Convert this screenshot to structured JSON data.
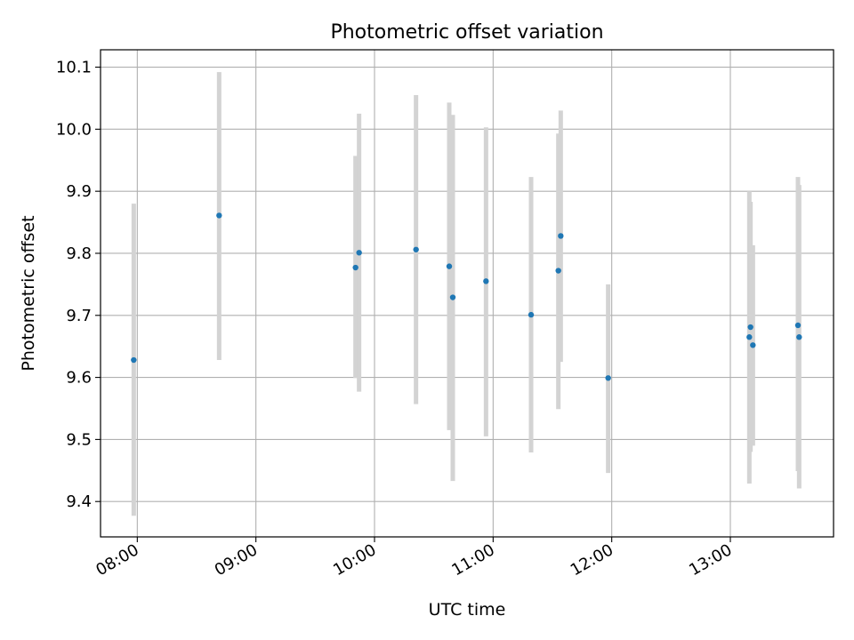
{
  "chart_data": {
    "type": "scatter",
    "title": "Photometric offset variation",
    "xlabel": "UTC time",
    "ylabel": "Photometric offset",
    "xlim": [
      7.69,
      13.87
    ],
    "ylim": [
      9.343,
      10.128
    ],
    "grid": true,
    "x_ticks": [
      {
        "value": 8,
        "label": "08:00"
      },
      {
        "value": 9,
        "label": "09:00"
      },
      {
        "value": 10,
        "label": "10:00"
      },
      {
        "value": 11,
        "label": "11:00"
      },
      {
        "value": 12,
        "label": "12:00"
      },
      {
        "value": 13,
        "label": "13:00"
      }
    ],
    "y_ticks": [
      {
        "value": 9.4,
        "label": "9.4"
      },
      {
        "value": 9.5,
        "label": "9.5"
      },
      {
        "value": 9.6,
        "label": "9.6"
      },
      {
        "value": 9.7,
        "label": "9.7"
      },
      {
        "value": 9.8,
        "label": "9.8"
      },
      {
        "value": 9.9,
        "label": "9.9"
      },
      {
        "value": 10.0,
        "label": "10.0"
      },
      {
        "value": 10.1,
        "label": "10.1"
      }
    ],
    "errorbar_color": "#d3d3d3",
    "marker_color": "#1f77b4",
    "points": [
      {
        "x": 7.97,
        "y": 9.628,
        "ylow": 9.377,
        "yhigh": 9.88
      },
      {
        "x": 8.69,
        "y": 9.861,
        "ylow": 9.628,
        "yhigh": 10.092
      },
      {
        "x": 9.84,
        "y": 9.777,
        "ylow": 9.599,
        "yhigh": 9.957
      },
      {
        "x": 9.87,
        "y": 9.801,
        "ylow": 9.577,
        "yhigh": 10.025
      },
      {
        "x": 10.35,
        "y": 9.806,
        "ylow": 9.557,
        "yhigh": 10.055
      },
      {
        "x": 10.63,
        "y": 9.779,
        "ylow": 9.515,
        "yhigh": 10.043
      },
      {
        "x": 10.66,
        "y": 9.729,
        "ylow": 9.433,
        "yhigh": 10.023
      },
      {
        "x": 10.94,
        "y": 9.755,
        "ylow": 9.505,
        "yhigh": 10.003
      },
      {
        "x": 11.32,
        "y": 9.701,
        "ylow": 9.479,
        "yhigh": 9.923
      },
      {
        "x": 11.55,
        "y": 9.772,
        "ylow": 9.549,
        "yhigh": 9.993
      },
      {
        "x": 11.57,
        "y": 9.828,
        "ylow": 9.625,
        "yhigh": 10.03
      },
      {
        "x": 11.97,
        "y": 9.599,
        "ylow": 9.446,
        "yhigh": 9.75
      },
      {
        "x": 13.16,
        "y": 9.665,
        "ylow": 9.429,
        "yhigh": 9.9
      },
      {
        "x": 13.17,
        "y": 9.681,
        "ylow": 9.48,
        "yhigh": 9.883
      },
      {
        "x": 13.19,
        "y": 9.652,
        "ylow": 9.49,
        "yhigh": 9.813
      },
      {
        "x": 13.57,
        "y": 9.684,
        "ylow": 9.449,
        "yhigh": 9.923
      },
      {
        "x": 13.58,
        "y": 9.665,
        "ylow": 9.421,
        "yhigh": 9.91
      }
    ]
  }
}
